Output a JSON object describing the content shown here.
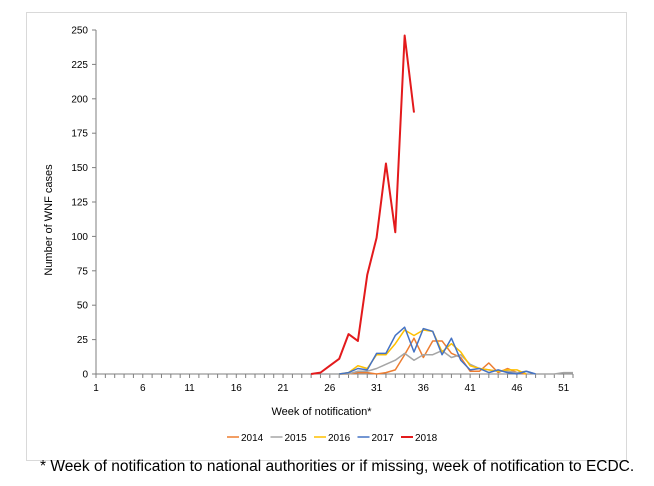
{
  "chart_data": {
    "type": "line",
    "title": "",
    "xlabel": "Week of notification*",
    "ylabel": "Number of WNF cases",
    "xlim": [
      1,
      52
    ],
    "ylim": [
      0,
      250
    ],
    "x_ticks": [
      1,
      6,
      11,
      16,
      21,
      26,
      31,
      36,
      41,
      46,
      51
    ],
    "y_ticks": [
      0,
      25,
      50,
      75,
      100,
      125,
      150,
      175,
      200,
      225,
      250
    ],
    "grid": false,
    "legend_position": "bottom",
    "series": [
      {
        "name": "2014",
        "color": "#ed7d31",
        "x": [
          27,
          28,
          29,
          30,
          31,
          32,
          33,
          34,
          35,
          36,
          37,
          38,
          39,
          40,
          41,
          42,
          43,
          44,
          45,
          46,
          47
        ],
        "values": [
          0,
          0,
          1,
          1,
          0,
          1,
          3,
          14,
          26,
          12,
          24,
          24,
          15,
          12,
          2,
          2,
          8,
          1,
          4,
          1,
          0
        ]
      },
      {
        "name": "2015",
        "color": "#a5a5a5",
        "x": [
          25,
          26,
          27,
          28,
          29,
          30,
          31,
          32,
          33,
          34,
          35,
          36,
          37,
          38,
          39,
          40,
          41,
          42,
          43,
          44,
          45,
          46,
          47,
          48,
          49,
          50,
          51,
          52
        ],
        "values": [
          0,
          0,
          0,
          0,
          2,
          2,
          4,
          7,
          10,
          15,
          10,
          14,
          14,
          17,
          12,
          14,
          7,
          4,
          3,
          2,
          2,
          1,
          2,
          0,
          0,
          0,
          1,
          1
        ]
      },
      {
        "name": "2016",
        "color": "#ffc000",
        "x": [
          27,
          28,
          29,
          30,
          31,
          32,
          33,
          34,
          35,
          36,
          37,
          38,
          39,
          40,
          41,
          42,
          43,
          44,
          45,
          46,
          47
        ],
        "values": [
          0,
          1,
          6,
          4,
          14,
          14,
          22,
          32,
          28,
          32,
          31,
          16,
          22,
          16,
          6,
          4,
          3,
          2,
          3,
          3,
          0
        ]
      },
      {
        "name": "2017",
        "color": "#4472c4",
        "x": [
          27,
          28,
          29,
          30,
          31,
          32,
          33,
          34,
          35,
          36,
          37,
          38,
          39,
          40,
          41,
          42,
          43,
          44,
          45,
          46,
          47,
          48
        ],
        "values": [
          0,
          1,
          4,
          3,
          15,
          15,
          28,
          34,
          16,
          33,
          31,
          14,
          26,
          10,
          3,
          4,
          1,
          3,
          1,
          0,
          2,
          0
        ]
      },
      {
        "name": "2018",
        "color": "#e31a1c",
        "x": [
          24,
          25,
          26,
          27,
          28,
          29,
          30,
          31,
          32,
          33,
          34,
          35
        ],
        "values": [
          0,
          1,
          6,
          11,
          29,
          24,
          72,
          99,
          153,
          103,
          246,
          190
        ]
      }
    ]
  },
  "footnote": "* Week of notification to national authorities or if missing, week of notification to ECDC."
}
